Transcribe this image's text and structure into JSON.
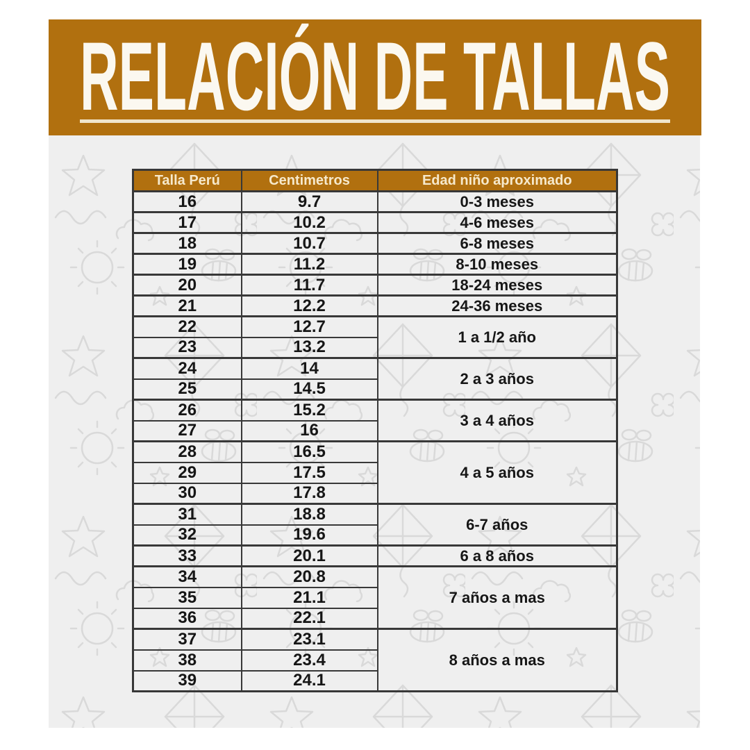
{
  "banner": {
    "title": "RELACIÓN DE TALLAS"
  },
  "colors": {
    "banner_bg": "#b1700f",
    "banner_text": "#fbf8f0",
    "banner_underline": "#f0e5cc",
    "header_bg": "#b1700f",
    "header_text": "#f6e9cc",
    "panel_bg": "#efefef",
    "doodle_stroke": "#d9d9d9",
    "table_border": "#383838",
    "cell_text": "#161616",
    "page_bg": "#ffffff"
  },
  "chart_data": {
    "type": "table",
    "title": "RELACIÓN DE TALLAS",
    "columns": [
      "Talla Perú",
      "Centimetros",
      "Edad niño aproximado"
    ],
    "rows": [
      {
        "talla": "16",
        "cm": "9.7",
        "edad": "0-3 meses",
        "edad_span": 1
      },
      {
        "talla": "17",
        "cm": "10.2",
        "edad": "4-6 meses",
        "edad_span": 1
      },
      {
        "talla": "18",
        "cm": "10.7",
        "edad": "6-8 meses",
        "edad_span": 1
      },
      {
        "talla": "19",
        "cm": "11.2",
        "edad": "8-10 meses",
        "edad_span": 1
      },
      {
        "talla": "20",
        "cm": "11.7",
        "edad": "18-24 meses",
        "edad_span": 1
      },
      {
        "talla": "21",
        "cm": "12.2",
        "edad": "24-36 meses",
        "edad_span": 1
      },
      {
        "talla": "22",
        "cm": "12.7",
        "edad": "1 a 1/2 año",
        "edad_span": 2
      },
      {
        "talla": "23",
        "cm": "13.2"
      },
      {
        "talla": "24",
        "cm": "14",
        "edad": "2 a 3 años",
        "edad_span": 2
      },
      {
        "talla": "25",
        "cm": "14.5"
      },
      {
        "talla": "26",
        "cm": "15.2",
        "edad": "3 a 4 años",
        "edad_span": 2
      },
      {
        "talla": "27",
        "cm": "16"
      },
      {
        "talla": "28",
        "cm": "16.5",
        "edad": "4 a 5 años",
        "edad_span": 3
      },
      {
        "talla": "29",
        "cm": "17.5"
      },
      {
        "talla": "30",
        "cm": "17.8"
      },
      {
        "talla": "31",
        "cm": "18.8",
        "edad": "6-7 años",
        "edad_span": 2
      },
      {
        "talla": "32",
        "cm": "19.6"
      },
      {
        "talla": "33",
        "cm": "20.1",
        "edad": "6 a 8 años",
        "edad_span": 1
      },
      {
        "talla": "34",
        "cm": "20.8",
        "edad": "7 años a mas",
        "edad_span": 3
      },
      {
        "talla": "35",
        "cm": "21.1"
      },
      {
        "talla": "36",
        "cm": "22.1"
      },
      {
        "talla": "37",
        "cm": "23.1",
        "edad": "8 años a mas",
        "edad_span": 3
      },
      {
        "talla": "38",
        "cm": "23.4"
      },
      {
        "talla": "39",
        "cm": "24.1"
      }
    ]
  }
}
